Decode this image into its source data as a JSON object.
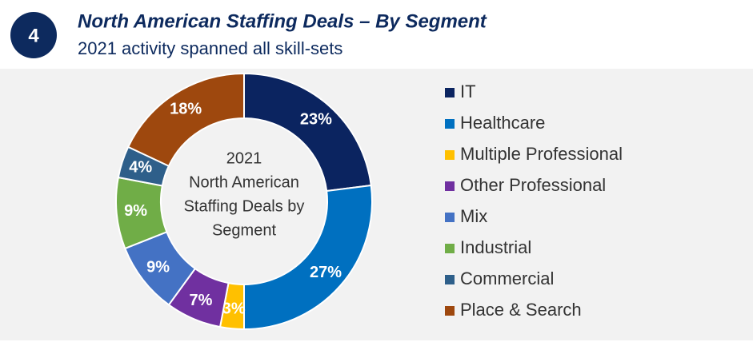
{
  "badge": "4",
  "chart_data": {
    "type": "donut",
    "title": "North American Staffing Deals – By Segment",
    "subtitle": "2021 activity spanned all skill-sets",
    "center_label": [
      "2021",
      "North American",
      "Staffing Deals by",
      "Segment"
    ],
    "categories": [
      "IT",
      "Healthcare",
      "Multiple Professional",
      "Other Professional",
      "Mix",
      "Industrial",
      "Commercial",
      "Place & Search"
    ],
    "values": [
      23,
      27,
      3,
      7,
      9,
      9,
      4,
      18
    ],
    "value_labels": [
      "23%",
      "27%",
      "3%",
      "7%",
      "9%",
      "9%",
      "4%",
      "18%"
    ],
    "colors": [
      "#0b2460",
      "#0070c0",
      "#ffc000",
      "#7030a0",
      "#4472c4",
      "#70ad47",
      "#2e5f8a",
      "#9e480e"
    ],
    "legend": "right"
  }
}
